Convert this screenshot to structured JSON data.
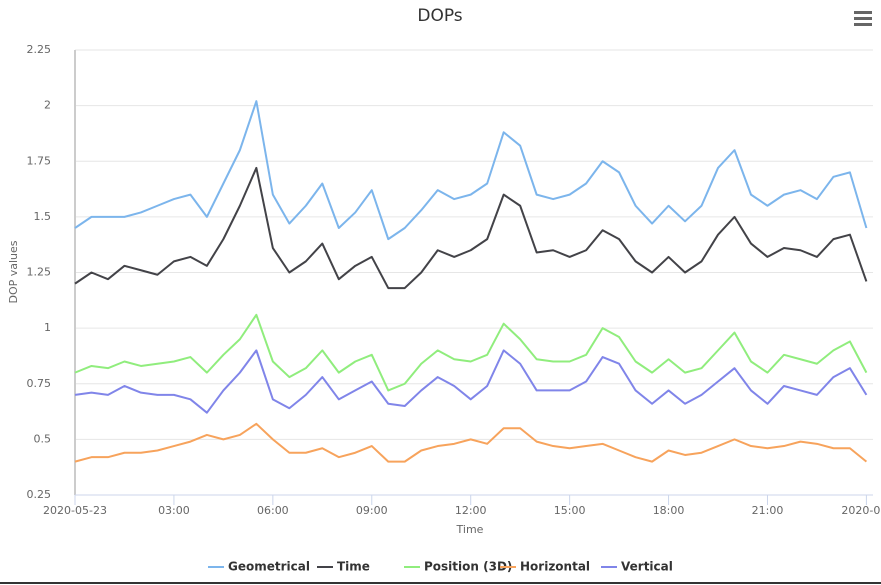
{
  "chart_data": {
    "type": "line",
    "title": "DOPs",
    "x_label": "Time",
    "y_label": "DOP values",
    "x": [
      0,
      0.5,
      1,
      1.5,
      2,
      2.5,
      3,
      3.5,
      4,
      4.5,
      5,
      5.5,
      6,
      6.5,
      7,
      7.5,
      8,
      8.5,
      9,
      9.5,
      10,
      10.5,
      11,
      11.5,
      12,
      12.5,
      13,
      13.5,
      14,
      14.5,
      15,
      15.5,
      16,
      16.5,
      17,
      17.5,
      18,
      18.5,
      19,
      19.5,
      20,
      20.5,
      21,
      21.5,
      22,
      22.5,
      23,
      23.5,
      24
    ],
    "series": [
      {
        "name": "Geometrical",
        "color": "#7cb5ec",
        "values": [
          1.45,
          1.5,
          1.5,
          1.5,
          1.52,
          1.55,
          1.58,
          1.6,
          1.5,
          1.65,
          1.8,
          2.02,
          1.6,
          1.47,
          1.55,
          1.65,
          1.45,
          1.52,
          1.62,
          1.4,
          1.45,
          1.53,
          1.62,
          1.58,
          1.6,
          1.65,
          1.88,
          1.82,
          1.6,
          1.58,
          1.6,
          1.65,
          1.75,
          1.7,
          1.55,
          1.47,
          1.55,
          1.48,
          1.55,
          1.72,
          1.8,
          1.6,
          1.55,
          1.6,
          1.62,
          1.58,
          1.68,
          1.7,
          1.45
        ]
      },
      {
        "name": "Time",
        "color": "#434348",
        "values": [
          1.2,
          1.25,
          1.22,
          1.28,
          1.26,
          1.24,
          1.3,
          1.32,
          1.28,
          1.4,
          1.55,
          1.72,
          1.36,
          1.25,
          1.3,
          1.38,
          1.22,
          1.28,
          1.32,
          1.18,
          1.18,
          1.25,
          1.35,
          1.32,
          1.35,
          1.4,
          1.6,
          1.55,
          1.34,
          1.35,
          1.32,
          1.35,
          1.44,
          1.4,
          1.3,
          1.25,
          1.32,
          1.25,
          1.3,
          1.42,
          1.5,
          1.38,
          1.32,
          1.36,
          1.35,
          1.32,
          1.4,
          1.42,
          1.21
        ]
      },
      {
        "name": "Position (3D)",
        "color": "#90ed7d",
        "values": [
          0.8,
          0.83,
          0.82,
          0.85,
          0.83,
          0.84,
          0.85,
          0.87,
          0.8,
          0.88,
          0.95,
          1.06,
          0.85,
          0.78,
          0.82,
          0.9,
          0.8,
          0.85,
          0.88,
          0.72,
          0.75,
          0.84,
          0.9,
          0.86,
          0.85,
          0.88,
          1.02,
          0.95,
          0.86,
          0.85,
          0.85,
          0.88,
          1.0,
          0.96,
          0.85,
          0.8,
          0.86,
          0.8,
          0.82,
          0.9,
          0.98,
          0.85,
          0.8,
          0.88,
          0.86,
          0.84,
          0.9,
          0.94,
          0.8
        ]
      },
      {
        "name": "Horizontal",
        "color": "#f7a35c",
        "values": [
          0.4,
          0.42,
          0.42,
          0.44,
          0.44,
          0.45,
          0.47,
          0.49,
          0.52,
          0.5,
          0.52,
          0.57,
          0.5,
          0.44,
          0.44,
          0.46,
          0.42,
          0.44,
          0.47,
          0.4,
          0.4,
          0.45,
          0.47,
          0.48,
          0.5,
          0.48,
          0.55,
          0.55,
          0.49,
          0.47,
          0.46,
          0.47,
          0.48,
          0.45,
          0.42,
          0.4,
          0.45,
          0.43,
          0.44,
          0.47,
          0.5,
          0.47,
          0.46,
          0.47,
          0.49,
          0.48,
          0.46,
          0.46,
          0.4
        ]
      },
      {
        "name": "Vertical",
        "color": "#8085e9",
        "values": [
          0.7,
          0.71,
          0.7,
          0.74,
          0.71,
          0.7,
          0.7,
          0.68,
          0.62,
          0.72,
          0.8,
          0.9,
          0.68,
          0.64,
          0.7,
          0.78,
          0.68,
          0.72,
          0.76,
          0.66,
          0.65,
          0.72,
          0.78,
          0.74,
          0.68,
          0.74,
          0.9,
          0.84,
          0.72,
          0.72,
          0.72,
          0.76,
          0.87,
          0.84,
          0.72,
          0.66,
          0.72,
          0.66,
          0.7,
          0.76,
          0.82,
          0.72,
          0.66,
          0.74,
          0.72,
          0.7,
          0.78,
          0.82,
          0.7
        ]
      }
    ],
    "xlim": [
      0,
      24.2
    ],
    "xticks": [
      {
        "value": 0,
        "label": "2020-05-23"
      },
      {
        "value": 3,
        "label": "03:00"
      },
      {
        "value": 6,
        "label": "06:00"
      },
      {
        "value": 9,
        "label": "09:00"
      },
      {
        "value": 12,
        "label": "12:00"
      },
      {
        "value": 15,
        "label": "15:00"
      },
      {
        "value": 18,
        "label": "18:00"
      },
      {
        "value": 21,
        "label": "21:00"
      },
      {
        "value": 24,
        "label": "2020-0…"
      }
    ],
    "ylim": [
      0.25,
      2.25
    ],
    "yticks": [
      0.25,
      0.5,
      0.75,
      1,
      1.25,
      1.5,
      1.75,
      2,
      2.25
    ],
    "grid": true,
    "legend": "bottom"
  }
}
